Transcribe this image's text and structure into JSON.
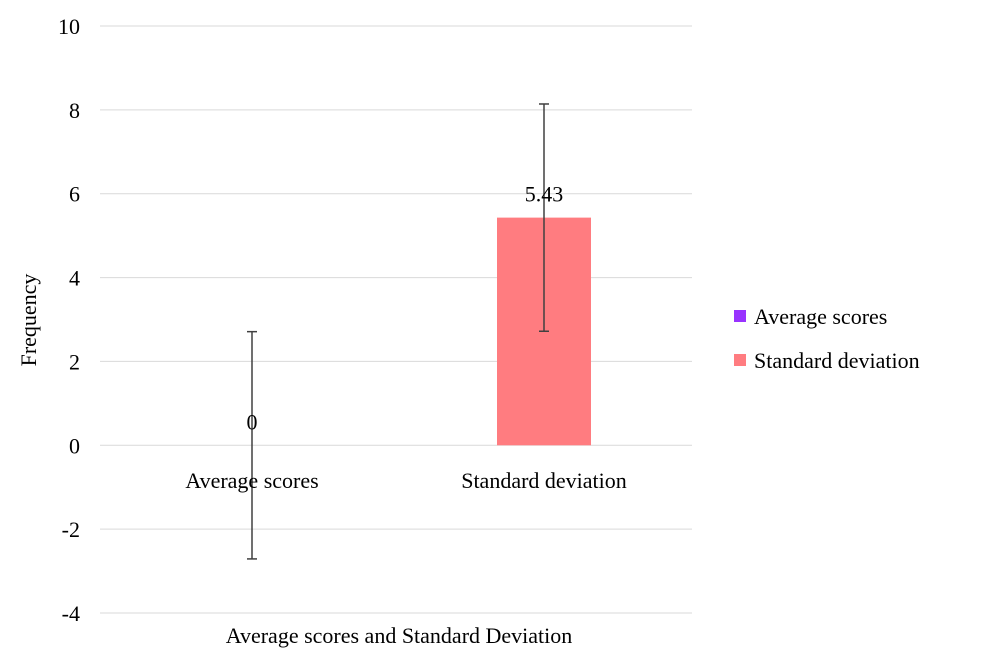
{
  "chart_data": {
    "type": "bar",
    "title": "",
    "xlabel": "Average scores and Standard Deviation",
    "ylabel": "Frequency",
    "ylim": [
      -4,
      10
    ],
    "yticks": [
      -4,
      -2,
      0,
      2,
      4,
      6,
      8,
      10
    ],
    "ytick_labels": [
      "-4",
      "-2",
      "0",
      "2",
      "4",
      "6",
      "8",
      "10"
    ],
    "categories": [
      "Average scores",
      "Standard deviation"
    ],
    "series": [
      {
        "name": "Average scores",
        "color": "#9933ff",
        "values": [
          0,
          null
        ],
        "data_labels": [
          "0",
          null
        ],
        "error": [
          2.71,
          null
        ]
      },
      {
        "name": "Standard deviation",
        "color": "#ff7c80",
        "values": [
          null,
          5.43
        ],
        "data_labels": [
          null,
          "5.43"
        ],
        "error": [
          null,
          2.71
        ]
      }
    ],
    "grid": true,
    "legend_position": "right"
  }
}
